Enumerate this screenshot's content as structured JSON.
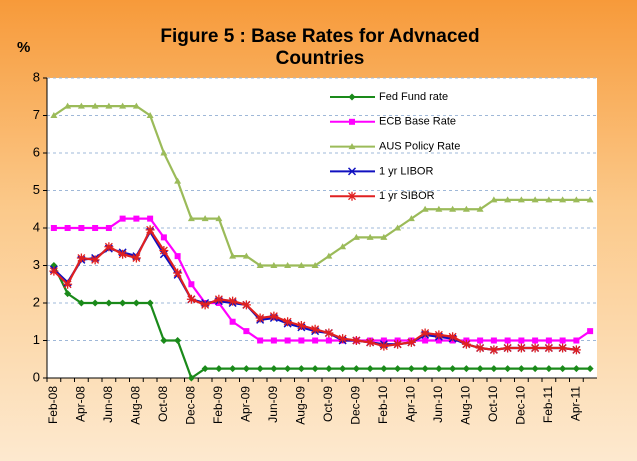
{
  "chart_data": {
    "type": "line",
    "title": "Figure 5 : Base Rates for Advnaced Countries",
    "y_label": "%",
    "categories": [
      "Feb-08",
      null,
      "Apr-08",
      null,
      "Jun-08",
      null,
      "Aug-08",
      null,
      "Oct-08",
      null,
      "Dec-08",
      null,
      "Feb-09",
      null,
      "Apr-09",
      null,
      "Jun-09",
      null,
      "Aug-09",
      null,
      "Oct-09",
      null,
      "Dec-09",
      null,
      "Feb-10",
      null,
      "Apr-10",
      null,
      "Jun-10",
      null,
      "Aug-10",
      null,
      "Oct-10",
      null,
      "Dec-10",
      null,
      "Feb-11",
      null,
      "Apr-11",
      null
    ],
    "series": [
      {
        "name": "Fed Fund rate",
        "color": "#1a8a1a",
        "marker": "diamond",
        "values": [
          3,
          2.25,
          2,
          2,
          2,
          2,
          2,
          2,
          1,
          1,
          0,
          0.25,
          0.25,
          0.25,
          0.25,
          0.25,
          0.25,
          0.25,
          0.25,
          0.25,
          0.25,
          0.25,
          0.25,
          0.25,
          0.25,
          0.25,
          0.25,
          0.25,
          0.25,
          0.25,
          0.25,
          0.25,
          0.25,
          0.25,
          0.25,
          0.25,
          0.25,
          0.25,
          0.25,
          0.25
        ]
      },
      {
        "name": "ECB Base Rate",
        "color": "#ff00ff",
        "marker": "square",
        "values": [
          4,
          4,
          4,
          4,
          4,
          4.25,
          4.25,
          4.25,
          3.75,
          3.25,
          2.5,
          2,
          2,
          1.5,
          1.25,
          1,
          1,
          1,
          1,
          1,
          1,
          1,
          1,
          1,
          1,
          1,
          1,
          1,
          1,
          1,
          1,
          1,
          1,
          1,
          1,
          1,
          1,
          1,
          1,
          1.25
        ]
      },
      {
        "name": "AUS Policy Rate",
        "color": "#9bbb59",
        "marker": "triangle",
        "values": [
          7,
          7.25,
          7.25,
          7.25,
          7.25,
          7.25,
          7.25,
          7,
          6,
          5.25,
          4.25,
          4.25,
          4.25,
          3.25,
          3.25,
          3,
          3,
          3,
          3,
          3,
          3.25,
          3.5,
          3.75,
          3.75,
          3.75,
          4,
          4.25,
          4.5,
          4.5,
          4.5,
          4.5,
          4.5,
          4.75,
          4.75,
          4.75,
          4.75,
          4.75,
          4.75,
          4.75,
          4.75
        ]
      },
      {
        "name": "1 yr LIBOR",
        "color": "#1010c0",
        "marker": "x",
        "values": [
          2.9,
          2.55,
          3.15,
          3.2,
          3.45,
          3.35,
          3.25,
          3.9,
          3.3,
          2.75,
          2.1,
          2.0,
          2.05,
          2.0,
          1.95,
          1.55,
          1.6,
          1.45,
          1.35,
          1.25,
          1.2,
          1.0,
          1.0,
          0.95,
          0.9,
          0.9,
          0.95,
          1.15,
          1.1,
          1.05,
          0.9,
          0.8,
          0.75,
          0.8,
          0.8,
          0.8,
          0.8,
          0.8,
          0.75,
          null
        ]
      },
      {
        "name": "1 yr SIBOR",
        "color": "#e02020",
        "marker": "star",
        "values": [
          2.85,
          2.5,
          3.2,
          3.15,
          3.5,
          3.3,
          3.2,
          3.95,
          3.4,
          2.8,
          2.1,
          1.95,
          2.1,
          2.05,
          1.95,
          1.6,
          1.65,
          1.5,
          1.4,
          1.3,
          1.2,
          1.05,
          1.0,
          0.95,
          0.85,
          0.9,
          0.95,
          1.2,
          1.15,
          1.1,
          0.9,
          0.8,
          0.75,
          0.8,
          0.8,
          0.8,
          0.8,
          0.8,
          0.75,
          null
        ]
      }
    ],
    "ylim": [
      0,
      8
    ],
    "yticks": [
      0,
      1,
      2,
      3,
      4,
      5,
      6,
      7,
      8
    ],
    "grid": true,
    "legend": "upper right"
  }
}
